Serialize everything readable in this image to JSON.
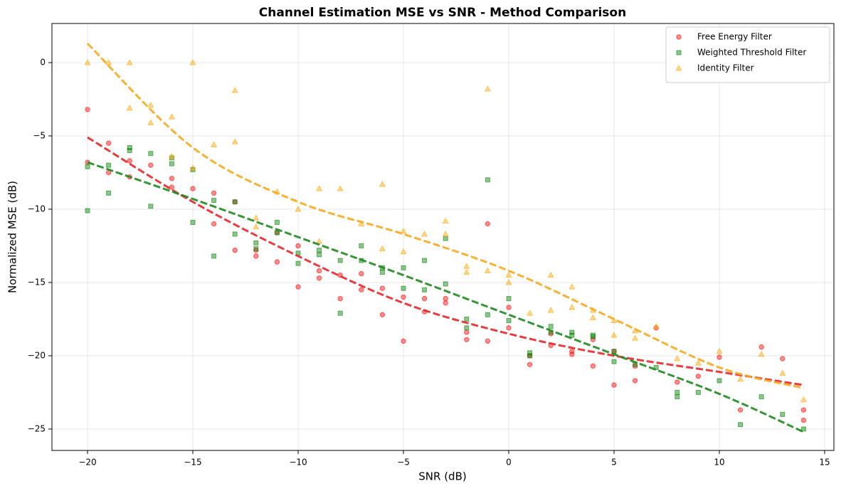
{
  "chart_data": {
    "type": "scatter",
    "title": "Channel Estimation MSE vs SNR - Method Comparison",
    "x_label": "SNR (dB)",
    "y_label": "Normalized MSE (dB)",
    "xlim": [
      -21.69,
      15.44
    ],
    "ylim": [
      -26.46,
      2.67
    ],
    "xticks": [
      {
        "value": -20,
        "label": "−20"
      },
      {
        "value": -15,
        "label": "−15"
      },
      {
        "value": -10,
        "label": "−10"
      },
      {
        "value": -5,
        "label": "−5"
      },
      0,
      5,
      10,
      15
    ],
    "yticks": [
      {
        "value": -25,
        "label": "−25"
      },
      {
        "value": -20,
        "label": "−20"
      },
      {
        "value": -15,
        "label": "−15"
      },
      {
        "value": -10,
        "label": "−10"
      },
      {
        "value": -5,
        "label": "−5"
      },
      0
    ],
    "grid": true,
    "legend": "upper right",
    "series": [
      {
        "name": "Free Energy Filter",
        "color": "red",
        "marker": "circle",
        "x": [
          -20,
          -20,
          -19,
          -19,
          -18,
          -18,
          -17,
          -16,
          -16,
          -15,
          -14,
          -14,
          -13,
          -13,
          -12,
          -12,
          -11,
          -11,
          -10,
          -10,
          -9,
          -9,
          -8,
          -8,
          -7,
          -7,
          -6,
          -6,
          -5,
          -5,
          -4,
          -4,
          -3,
          -3,
          -2,
          -2,
          -1,
          -1,
          0,
          0,
          1,
          1,
          2,
          2,
          3,
          3,
          4,
          4,
          5,
          5,
          6,
          6,
          7,
          8,
          9,
          10,
          11,
          12,
          13,
          14,
          14
        ],
        "values": [
          -3.2,
          -6.8,
          -5.5,
          -7.5,
          -6.7,
          -7.8,
          -7.0,
          -7.9,
          -8.5,
          -8.6,
          -8.9,
          -11.0,
          -9.5,
          -12.8,
          -12.8,
          -13.2,
          -11.6,
          -13.6,
          -12.5,
          -15.3,
          -14.2,
          -14.7,
          -14.5,
          -16.1,
          -14.4,
          -15.5,
          -15.4,
          -17.2,
          -16.0,
          -19.0,
          -16.1,
          -17.0,
          -16.1,
          -16.4,
          -18.4,
          -18.9,
          -11.0,
          -19.0,
          -16.7,
          -18.1,
          -20.0,
          -20.6,
          -19.3,
          -18.5,
          -19.7,
          -19.9,
          -18.9,
          -20.7,
          -22.0,
          -19.7,
          -20.7,
          -21.7,
          -18.1,
          -21.8,
          -21.4,
          -20.1,
          -23.7,
          -19.4,
          -20.2,
          -23.7,
          -24.4
        ]
      },
      {
        "name": "Weighted Threshold Filter",
        "color": "green",
        "marker": "square",
        "x": [
          -20,
          -20,
          -19,
          -19,
          -18,
          -18,
          -17,
          -17,
          -16,
          -16,
          -15,
          -15,
          -14,
          -14,
          -13,
          -13,
          -12,
          -12,
          -11,
          -11,
          -10,
          -10,
          -9,
          -9,
          -8,
          -8,
          -7,
          -7,
          -6,
          -6,
          -5,
          -5,
          -4,
          -4,
          -3,
          -3,
          -2,
          -2,
          -1,
          -1,
          0,
          0,
          1,
          1,
          2,
          2,
          3,
          3,
          4,
          4,
          5,
          5,
          6,
          7,
          8,
          8,
          9,
          10,
          11,
          12,
          13,
          14
        ],
        "values": [
          -7.1,
          -10.1,
          -7.0,
          -8.9,
          -5.8,
          -6.0,
          -6.2,
          -9.8,
          -6.5,
          -6.9,
          -7.3,
          -10.9,
          -9.4,
          -13.2,
          -9.5,
          -11.7,
          -12.3,
          -12.7,
          -10.9,
          -11.6,
          -13.0,
          -13.7,
          -12.8,
          -13.1,
          -13.5,
          -17.1,
          -12.5,
          -13.5,
          -14.0,
          -14.3,
          -14.0,
          -15.4,
          -13.5,
          -15.5,
          -12.0,
          -15.1,
          -17.5,
          -18.1,
          -8.0,
          -17.2,
          -16.1,
          -17.6,
          -19.8,
          -20.0,
          -18.0,
          -18.4,
          -18.4,
          -18.6,
          -18.6,
          -18.7,
          -19.7,
          -20.4,
          -20.6,
          -20.8,
          -22.5,
          -22.8,
          -22.5,
          -21.7,
          -24.7,
          -22.8,
          -24.0,
          -25.0
        ]
      },
      {
        "name": "Identity Filter",
        "color": "orange",
        "marker": "triangle",
        "x": [
          -20,
          -19,
          -18,
          -18,
          -17,
          -17,
          -16,
          -16,
          -15,
          -15,
          -14,
          -13,
          -13,
          -12,
          -12,
          -11,
          -10,
          -9,
          -9,
          -8,
          -7,
          -6,
          -6,
          -5,
          -5,
          -4,
          -3,
          -3,
          -2,
          -2,
          -1,
          -1,
          0,
          0,
          1,
          2,
          2,
          3,
          3,
          4,
          4,
          5,
          5,
          6,
          6,
          7,
          8,
          9,
          10,
          11,
          12,
          13,
          14
        ],
        "values": [
          0,
          0,
          0,
          -3.1,
          -2.9,
          -4.1,
          -3.7,
          -6.4,
          0,
          -7.2,
          -5.6,
          -1.9,
          -5.4,
          -10.6,
          -11.2,
          -8.8,
          -10.0,
          -8.6,
          -12.2,
          -8.6,
          -11.0,
          -8.3,
          -12.7,
          -11.5,
          -12.9,
          -11.7,
          -10.8,
          -11.7,
          -13.9,
          -14.3,
          -1.8,
          -14.2,
          -14.5,
          -15.0,
          -17.1,
          -14.5,
          -16.9,
          -15.3,
          -16.7,
          -16.9,
          -17.4,
          -17.6,
          -18.6,
          -18.3,
          -18.8,
          -18.0,
          -20.2,
          -20.5,
          -19.7,
          -21.6,
          -19.9,
          -21.2,
          -23.0
        ]
      }
    ],
    "trend_lines": [
      {
        "color": "#e8262a",
        "x": [
          -20,
          -15,
          -10,
          -5,
          0,
          5,
          10,
          14
        ],
        "values": [
          -5.1,
          -9.5,
          -13.2,
          -16.4,
          -18.5,
          -20.0,
          -21.1,
          -22.0
        ]
      },
      {
        "color": "#1f8a1f",
        "x": [
          -20,
          -15,
          -10,
          -5,
          0,
          5,
          10,
          14
        ],
        "values": [
          -6.8,
          -9.3,
          -11.9,
          -14.5,
          -17.2,
          -19.9,
          -22.6,
          -25.2
        ]
      },
      {
        "color": "#f8a81e",
        "x": [
          -20,
          -15,
          -10,
          -5,
          0,
          5,
          10,
          14
        ],
        "values": [
          1.3,
          -5.8,
          -9.5,
          -11.7,
          -14.2,
          -17.5,
          -20.8,
          -22.2
        ]
      }
    ]
  }
}
